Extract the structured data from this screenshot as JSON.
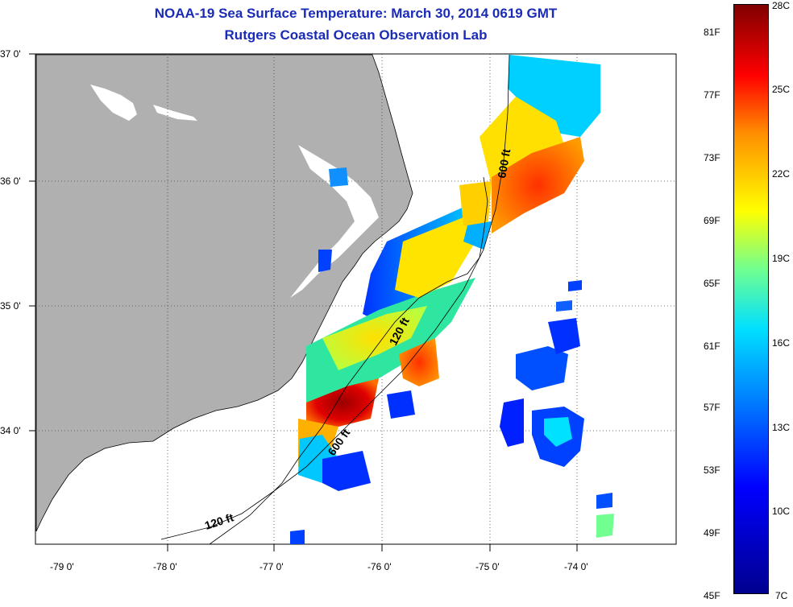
{
  "title": {
    "line1": "NOAA-19 Sea Surface Temperature:  March 30, 2014 0619 GMT",
    "line2": "Rutgers Coastal Ocean Observation Lab"
  },
  "map": {
    "lat_labels": [
      "37 0'",
      "36 0'",
      "35 0'",
      "34 0'"
    ],
    "lon_labels": [
      "-79 0'",
      "-78 0'",
      "-77 0'",
      "-76 0'",
      "-75 0'",
      "-74 0'"
    ],
    "contour_labels": [
      "600 ft",
      "120 ft",
      "600 ft",
      "120 ft"
    ],
    "land_color": "#b0b0b0",
    "gridline_style": "dotted"
  },
  "colorbar": {
    "fahrenheit_labels": [
      "81F",
      "77F",
      "73F",
      "69F",
      "65F",
      "61F",
      "57F",
      "53F",
      "49F",
      "45F"
    ],
    "celsius_labels": [
      "28C",
      "25C",
      "22C",
      "19C",
      "16C",
      "13C",
      "10C",
      "7C"
    ]
  }
}
